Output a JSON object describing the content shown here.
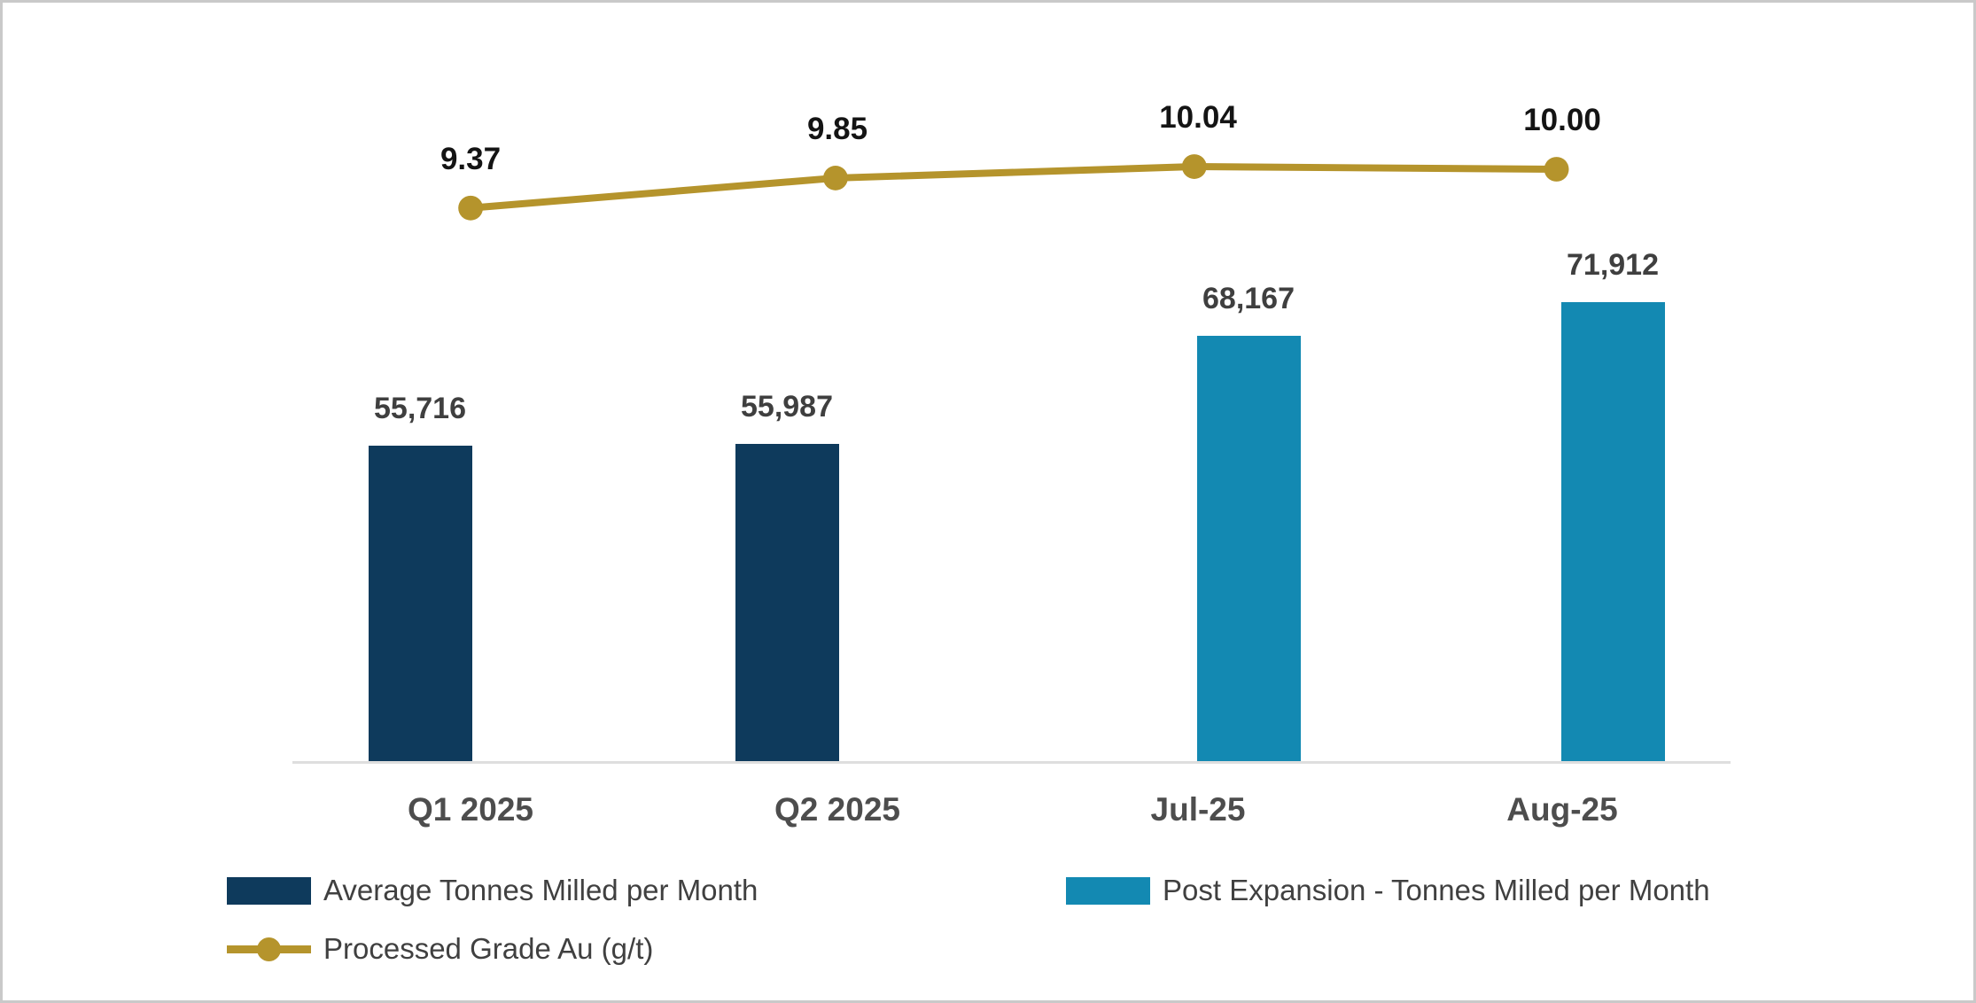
{
  "chart_data": {
    "type": "combo-bar-line",
    "categories": [
      "Q1 2025",
      "Q2 2025",
      "Jul-25",
      "Aug-25"
    ],
    "series": [
      {
        "name": "Average Tonnes Milled per Month",
        "type": "bar",
        "color": "#0e3a5c",
        "values": [
          55716,
          55987,
          null,
          null
        ],
        "data_labels": [
          "55,716",
          "55,987",
          null,
          null
        ]
      },
      {
        "name": "Post Expansion - Tonnes Milled per Month",
        "type": "bar",
        "color": "#1389b2",
        "values": [
          null,
          null,
          68167,
          71912
        ],
        "data_labels": [
          null,
          null,
          "68,167",
          "71,912"
        ]
      },
      {
        "name": "Processed Grade Au (g/t)",
        "type": "line",
        "color": "#b5942c",
        "values": [
          9.37,
          9.85,
          10.04,
          10.0
        ],
        "data_labels": [
          "9.37",
          "9.85",
          "10.04",
          "10.00"
        ]
      }
    ],
    "title": "",
    "xlabel": "",
    "ylabel": "",
    "ylim_estimate": [
      20000,
      72000
    ],
    "grid": false,
    "value_axis_visible": false,
    "legend_position": "bottom-left",
    "colors": {
      "bar_label_text": "#3f3f3f",
      "line_label_text": "#141414",
      "category_label_text": "#4d4d4d",
      "legend_text": "#404040",
      "axis_line": "#dedede"
    }
  }
}
